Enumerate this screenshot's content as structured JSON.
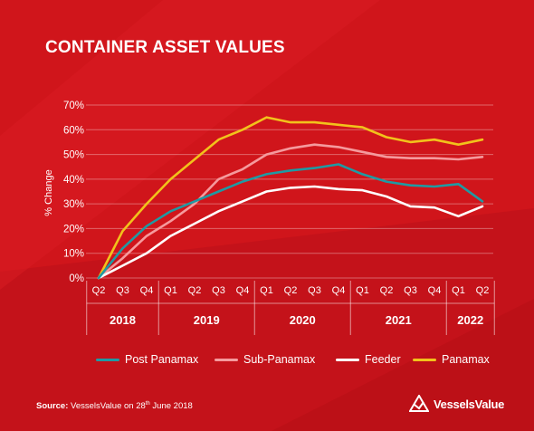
{
  "title": "CONTAINER ASSET VALUES",
  "source": {
    "label": "Source:",
    "text": "VesselsValue on 28",
    "sup": "th",
    "text_after": " June 2018"
  },
  "logo": {
    "text": "VesselsValue",
    "icon": "vesselsvalue-logo-icon"
  },
  "colors": {
    "background": "#d0151b",
    "post_panamax": "#1f9aa3",
    "sub_panamax": "#f59a9d",
    "feeder": "#ffffff",
    "panamax": "#f2c21b"
  },
  "chart_data": {
    "type": "line",
    "title": "CONTAINER ASSET VALUES",
    "xlabel": "",
    "ylabel": "% Change",
    "ylim": [
      0,
      70
    ],
    "ytick_labels": [
      "0%",
      "10%",
      "20%",
      "30%",
      "40%",
      "50%",
      "60%",
      "70%"
    ],
    "yticks": [
      0,
      10,
      20,
      30,
      40,
      50,
      60,
      70
    ],
    "grid": true,
    "legend_position": "bottom",
    "categories": [
      "Q2",
      "Q3",
      "Q4",
      "Q1",
      "Q2",
      "Q3",
      "Q4",
      "Q1",
      "Q2",
      "Q3",
      "Q4",
      "Q1",
      "Q2",
      "Q3",
      "Q4",
      "Q1",
      "Q2"
    ],
    "year_groups": [
      {
        "label": "2018",
        "start": 0,
        "end": 2
      },
      {
        "label": "2019",
        "start": 3,
        "end": 6
      },
      {
        "label": "2020",
        "start": 7,
        "end": 10
      },
      {
        "label": "2021",
        "start": 11,
        "end": 14
      },
      {
        "label": "2022",
        "start": 15,
        "end": 16
      }
    ],
    "series": [
      {
        "name": "Post Panamax",
        "color": "#1f9aa3",
        "values": [
          0,
          12,
          21,
          27,
          31,
          35,
          39,
          42,
          43.5,
          44.5,
          46,
          42,
          39,
          37.5,
          37,
          38,
          31
        ]
      },
      {
        "name": "Sub-Panamax",
        "color": "#f59a9d",
        "values": [
          0,
          8,
          17,
          23,
          30,
          40,
          44,
          50,
          52.5,
          54,
          53,
          51,
          49,
          48.5,
          48.5,
          48,
          49
        ]
      },
      {
        "name": "Feeder",
        "color": "#ffffff",
        "values": [
          0,
          5,
          10,
          17,
          22,
          27,
          31,
          35,
          36.5,
          37,
          36,
          35.5,
          33,
          29,
          28.5,
          25,
          29
        ]
      },
      {
        "name": "Panamax",
        "color": "#f2c21b",
        "values": [
          0,
          19,
          30,
          40,
          48,
          56,
          60,
          65,
          63,
          63,
          62,
          61,
          57,
          55,
          56,
          54,
          56
        ]
      }
    ]
  }
}
